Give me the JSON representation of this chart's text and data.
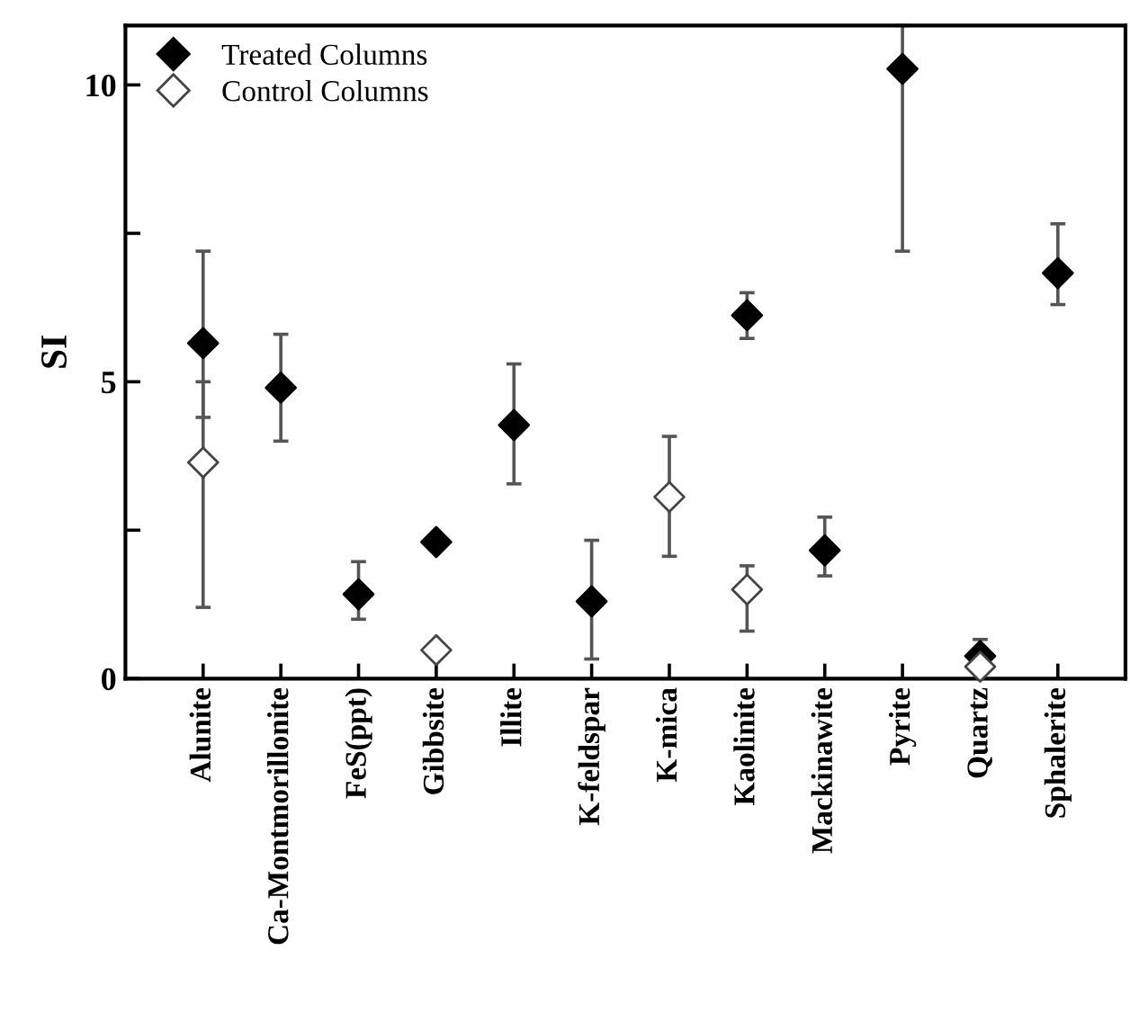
{
  "chart_data": {
    "type": "scatter",
    "ylabel": "SI",
    "categories": [
      "Alunite",
      "Ca-Montmorillonite",
      "FeS(ppt)",
      "Gibbsite",
      "Illite",
      "K-feldspar",
      "K-mica",
      "Kaolinite",
      "Mackinawite",
      "Pyrite",
      "Quartz",
      "Sphalerite"
    ],
    "series": [
      {
        "name": "Treated Columns",
        "color": "#000000",
        "marker": "diamond",
        "values": [
          5.65,
          4.9,
          1.42,
          2.3,
          4.27,
          1.3,
          null,
          6.12,
          2.16,
          10.27,
          0.38,
          6.83
        ],
        "errors": [
          [
            4.4,
            7.2
          ],
          [
            4.0,
            5.8
          ],
          [
            1.0,
            1.97
          ],
          null,
          [
            3.28,
            5.3
          ],
          [
            0.33,
            2.33
          ],
          null,
          [
            5.73,
            6.5
          ],
          [
            1.73,
            2.72
          ],
          [
            7.2,
            11.0
          ],
          [
            0.38,
            0.66
          ],
          [
            6.3,
            7.66
          ]
        ]
      },
      {
        "name": "Control Columns",
        "color": "#ffffff",
        "marker": "diamond",
        "values": [
          3.64,
          null,
          null,
          0.48,
          null,
          null,
          3.06,
          1.5,
          null,
          null,
          0.2,
          null
        ],
        "errors": [
          [
            1.2,
            5.0
          ],
          null,
          null,
          null,
          null,
          null,
          [
            2.06,
            4.08
          ],
          [
            0.8,
            1.9
          ],
          null,
          null,
          null,
          null
        ]
      }
    ],
    "ylim": [
      0,
      11
    ],
    "yticks": [
      0,
      {
        "value": 2.5,
        "label": null
      },
      5,
      {
        "value": 7.5,
        "label": null
      },
      10
    ],
    "legend": "top left",
    "grid": false
  }
}
